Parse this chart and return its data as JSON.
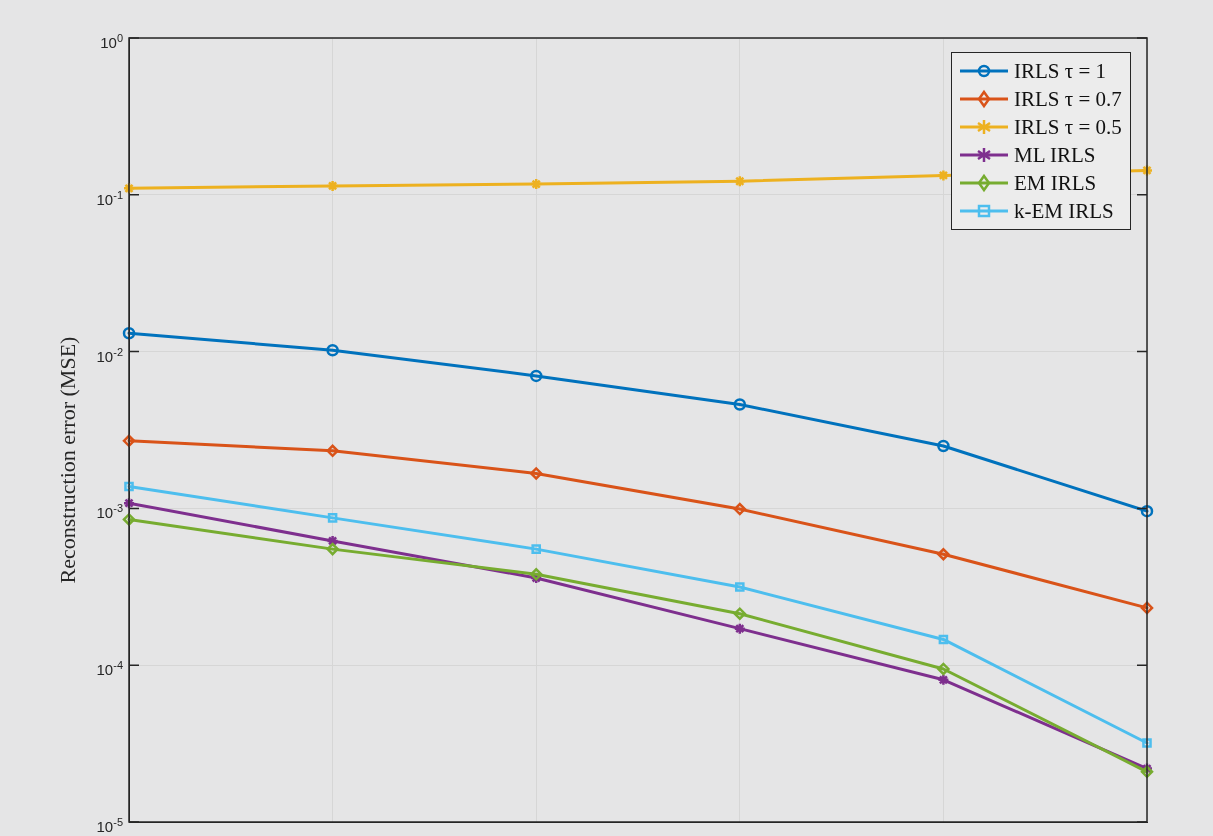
{
  "chart_data": {
    "type": "line",
    "ylabel": "Reconstruction error (MSE)",
    "log": "y",
    "grid": true,
    "legend": "top right",
    "tick_labels": "y",
    "line_style": "solid",
    "ylim": [
      1e-05,
      1
    ],
    "yticks": [
      {
        "value": 1e-05,
        "label": "10$^{-5}$"
      },
      {
        "value": 0.0001,
        "label": "10$^{-4}$"
      },
      {
        "value": 0.001,
        "label": "10$^{-3}$"
      },
      {
        "value": 0.01,
        "label": "10$^{-2}$"
      },
      {
        "value": 0.1,
        "label": "10$^{-1}$"
      },
      {
        "value": 1,
        "label": "10$^{0}$"
      }
    ],
    "categories": [
      null,
      null,
      null,
      null,
      null,
      null
    ],
    "series": [
      {
        "name": "IRLS τ = 1",
        "color": "#0072bd",
        "marker": "circle",
        "values": [
          0.0131,
          0.0102,
          0.007,
          0.0046,
          0.0025,
          0.00096
        ]
      },
      {
        "name": "IRLS τ = 0.7",
        "color": "#d95319",
        "marker": "diamond",
        "values": [
          0.0027,
          0.00233,
          0.00167,
          0.00099,
          0.00051,
          0.000232
        ]
      },
      {
        "name": "IRLS τ = 0.5",
        "color": "#edb120",
        "marker": "cross",
        "values": [
          0.11,
          0.114,
          0.117,
          0.122,
          0.133,
          0.143
        ]
      },
      {
        "name": "ML IRLS",
        "color": "#7e2f8e",
        "marker": "cross",
        "values": [
          0.00108,
          0.00062,
          0.00036,
          0.000171,
          8.07e-05,
          2.19e-05
        ]
      },
      {
        "name": "EM IRLS",
        "color": "#77ac30",
        "marker": "diamond",
        "values": [
          0.00085,
          0.00055,
          0.00038,
          0.000213,
          9.46e-05,
          2.09e-05
        ]
      },
      {
        "name": "k-EM IRLS",
        "color": "#4dbeee",
        "marker": "square",
        "values": [
          0.00138,
          0.00087,
          0.00055,
          0.000315,
          0.000146,
          3.19e-05
        ]
      }
    ]
  }
}
